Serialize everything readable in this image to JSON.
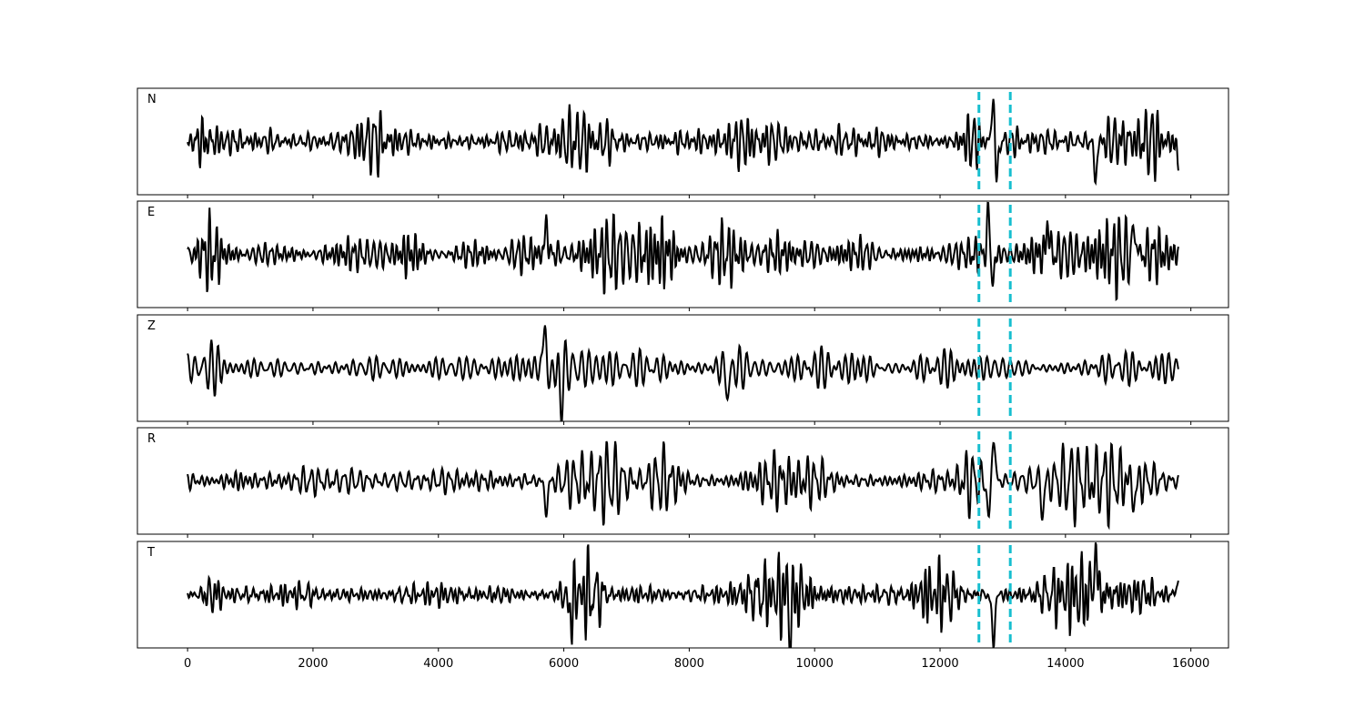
{
  "chart_data": {
    "type": "line",
    "title": "",
    "xlabel": "",
    "ylabel": "",
    "xlim": [
      -800,
      16600
    ],
    "x_ticks": [
      "0",
      "2000",
      "4000",
      "6000",
      "8000",
      "10000",
      "12000",
      "14000",
      "16000"
    ],
    "x_tick_values": [
      0,
      2000,
      4000,
      6000,
      8000,
      10000,
      12000,
      14000,
      16000
    ],
    "sample_count": 15800,
    "markers": [
      12620,
      13120
    ],
    "marker_color": "#17becf",
    "trace_color": "#000000",
    "grid": false,
    "panels": [
      {
        "label": "N",
        "ylim": [
          -1.1,
          1.1
        ],
        "events": [
          {
            "x": 10,
            "dur": 500,
            "amp": 0.22,
            "period": 70
          },
          {
            "x": 2500,
            "dur": 900,
            "amp": 0.2,
            "period": 60
          },
          {
            "x": 5700,
            "dur": 1400,
            "amp": 0.28,
            "period": 110
          },
          {
            "x": 8400,
            "dur": 1400,
            "amp": 0.3,
            "period": 110
          },
          {
            "x": 12200,
            "dur": 500,
            "amp": 0.32,
            "period": 90
          },
          {
            "x": 14300,
            "dur": 1500,
            "amp": 0.3,
            "period": 130
          }
        ],
        "spikes": [
          {
            "x": 12850,
            "value": 0.95
          },
          {
            "x": 12900,
            "value": -0.85
          },
          {
            "x": 14480,
            "value": -0.75
          },
          {
            "x": 15800,
            "value": -0.42
          }
        ]
      },
      {
        "label": "E",
        "ylim": [
          -1.1,
          1.1
        ],
        "events": [
          {
            "x": 10,
            "dur": 600,
            "amp": 0.2,
            "period": 70
          },
          {
            "x": 3300,
            "dur": 600,
            "amp": 0.2,
            "period": 70
          },
          {
            "x": 5700,
            "dur": 2300,
            "amp": 0.35,
            "period": 110
          },
          {
            "x": 8200,
            "dur": 1500,
            "amp": 0.28,
            "period": 100
          },
          {
            "x": 13100,
            "dur": 2700,
            "amp": 0.28,
            "period": 110
          }
        ],
        "spikes": [
          {
            "x": 5720,
            "value": 0.62
          },
          {
            "x": 12780,
            "value": 1.0
          },
          {
            "x": 12830,
            "value": -0.8
          },
          {
            "x": 13720,
            "value": 0.62
          },
          {
            "x": 15100,
            "value": 0.55
          }
        ]
      },
      {
        "label": "Z",
        "ylim": [
          -1.1,
          1.1
        ],
        "events": [
          {
            "x": 200,
            "dur": 400,
            "amp": 0.15,
            "period": 70
          },
          {
            "x": 5650,
            "dur": 1300,
            "amp": 0.35,
            "period": 110
          },
          {
            "x": 8300,
            "dur": 700,
            "amp": 0.38,
            "period": 110
          },
          {
            "x": 10500,
            "dur": 800,
            "amp": 0.25,
            "period": 110
          },
          {
            "x": 15300,
            "dur": 500,
            "amp": 0.2,
            "period": 90
          }
        ],
        "spikes": [
          {
            "x": 5700,
            "value": 1.08
          },
          {
            "x": 5750,
            "value": -0.5
          },
          {
            "x": 5950,
            "value": -0.68
          },
          {
            "x": 8620,
            "value": -0.55
          }
        ]
      },
      {
        "label": "R",
        "ylim": [
          -1.1,
          1.1
        ],
        "events": [
          {
            "x": 500,
            "dur": 600,
            "amp": 0.2,
            "period": 70
          },
          {
            "x": 5700,
            "dur": 1400,
            "amp": 0.3,
            "period": 110
          },
          {
            "x": 7300,
            "dur": 800,
            "amp": 0.35,
            "period": 110
          },
          {
            "x": 8600,
            "dur": 2000,
            "amp": 0.25,
            "period": 110
          },
          {
            "x": 12200,
            "dur": 500,
            "amp": 0.28,
            "period": 100
          },
          {
            "x": 13300,
            "dur": 2500,
            "amp": 0.28,
            "period": 120
          }
        ],
        "spikes": [
          {
            "x": 5720,
            "value": -0.65
          },
          {
            "x": 12780,
            "value": -0.85
          },
          {
            "x": 12850,
            "value": 0.98
          },
          {
            "x": 13640,
            "value": -0.62
          },
          {
            "x": 15100,
            "value": -0.45
          }
        ]
      },
      {
        "label": "T",
        "ylim": [
          -1.1,
          1.1
        ],
        "events": [
          {
            "x": 200,
            "dur": 400,
            "amp": 0.25,
            "period": 70
          },
          {
            "x": 5900,
            "dur": 800,
            "amp": 0.35,
            "period": 110
          },
          {
            "x": 8600,
            "dur": 2000,
            "amp": 0.38,
            "period": 110
          },
          {
            "x": 11500,
            "dur": 1000,
            "amp": 0.3,
            "period": 100
          },
          {
            "x": 13200,
            "dur": 2600,
            "amp": 0.3,
            "period": 110
          }
        ],
        "spikes": [
          {
            "x": 6100,
            "value": -0.55
          },
          {
            "x": 9620,
            "value": -0.62
          },
          {
            "x": 12850,
            "value": -1.0
          },
          {
            "x": 14480,
            "value": 0.88
          },
          {
            "x": 15800,
            "value": 0.35
          }
        ]
      }
    ]
  }
}
